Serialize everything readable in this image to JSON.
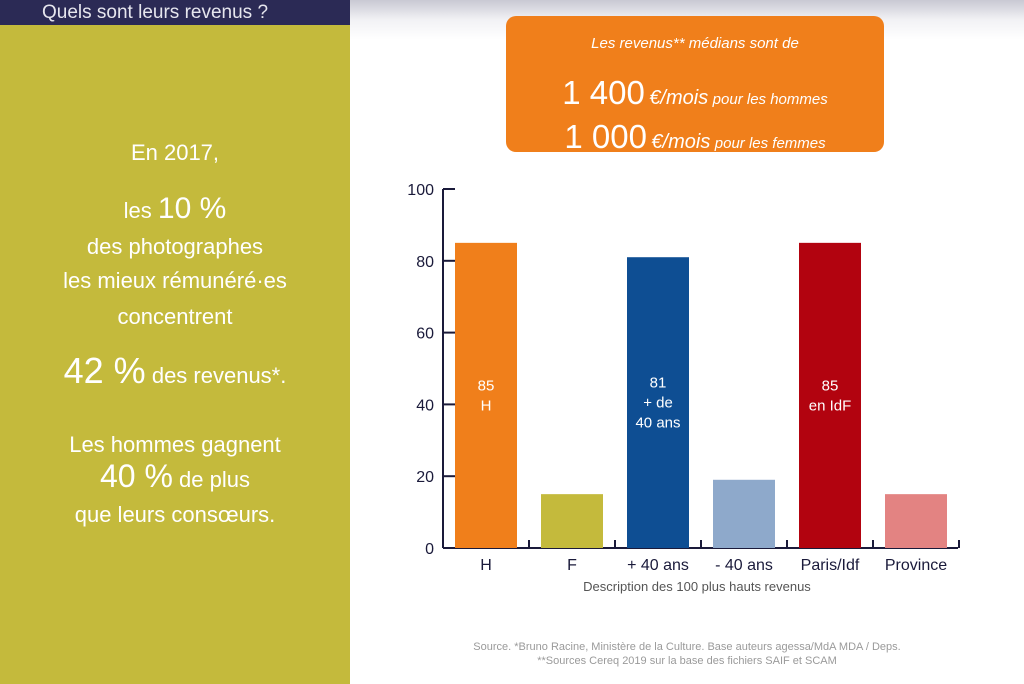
{
  "header": {
    "title": "Quels sont leurs revenus ?"
  },
  "left_panel": {
    "line1": "En 2017,",
    "line2_prefix": "les",
    "line2_big": "10 %",
    "line3": "des photographes",
    "line4": "les mieux rémunéré·es",
    "line5": "concentrent",
    "line6_big": "42 %",
    "line6_suffix": "des revenus*.",
    "line7": "Les hommes gagnent",
    "line8_big": "40 %",
    "line8_suffix": "de plus",
    "line9": "que leurs consœurs."
  },
  "banner": {
    "intro": "Les revenus** médians sont de",
    "men_amount": "1 400",
    "men_unit": "€/mois",
    "men_label": "pour les hommes",
    "women_amount": "1 000",
    "women_unit": "€/mois",
    "women_label": "pour les femmes"
  },
  "chart_data": {
    "type": "bar",
    "categories": [
      "H",
      "F",
      "+ 40 ans",
      "- 40 ans",
      "Paris/Idf",
      "Province"
    ],
    "values": [
      85,
      15,
      81,
      19,
      85,
      15
    ],
    "bar_labels": [
      [
        "85",
        "H"
      ],
      [],
      [
        "81",
        "+ de",
        "40 ans"
      ],
      [],
      [
        "85",
        "en IdF"
      ],
      []
    ],
    "colors": [
      "#f07f1b",
      "#c4ba3c",
      "#0e4e93",
      "#8ea9cb",
      "#b2030f",
      "#e38382"
    ],
    "xlabel": "Description des 100 plus hauts revenus",
    "ylabel": "",
    "ylim": [
      0,
      100
    ],
    "yticks": [
      0,
      20,
      40,
      60,
      80,
      100
    ],
    "grid": false
  },
  "source": {
    "line1": "Source. *Bruno Racine, Ministère de la Culture. Base auteurs agessa/MdA MDA / Deps.",
    "line2": "**Sources Cereq 2019 sur la base des fichiers SAIF et SCAM"
  }
}
